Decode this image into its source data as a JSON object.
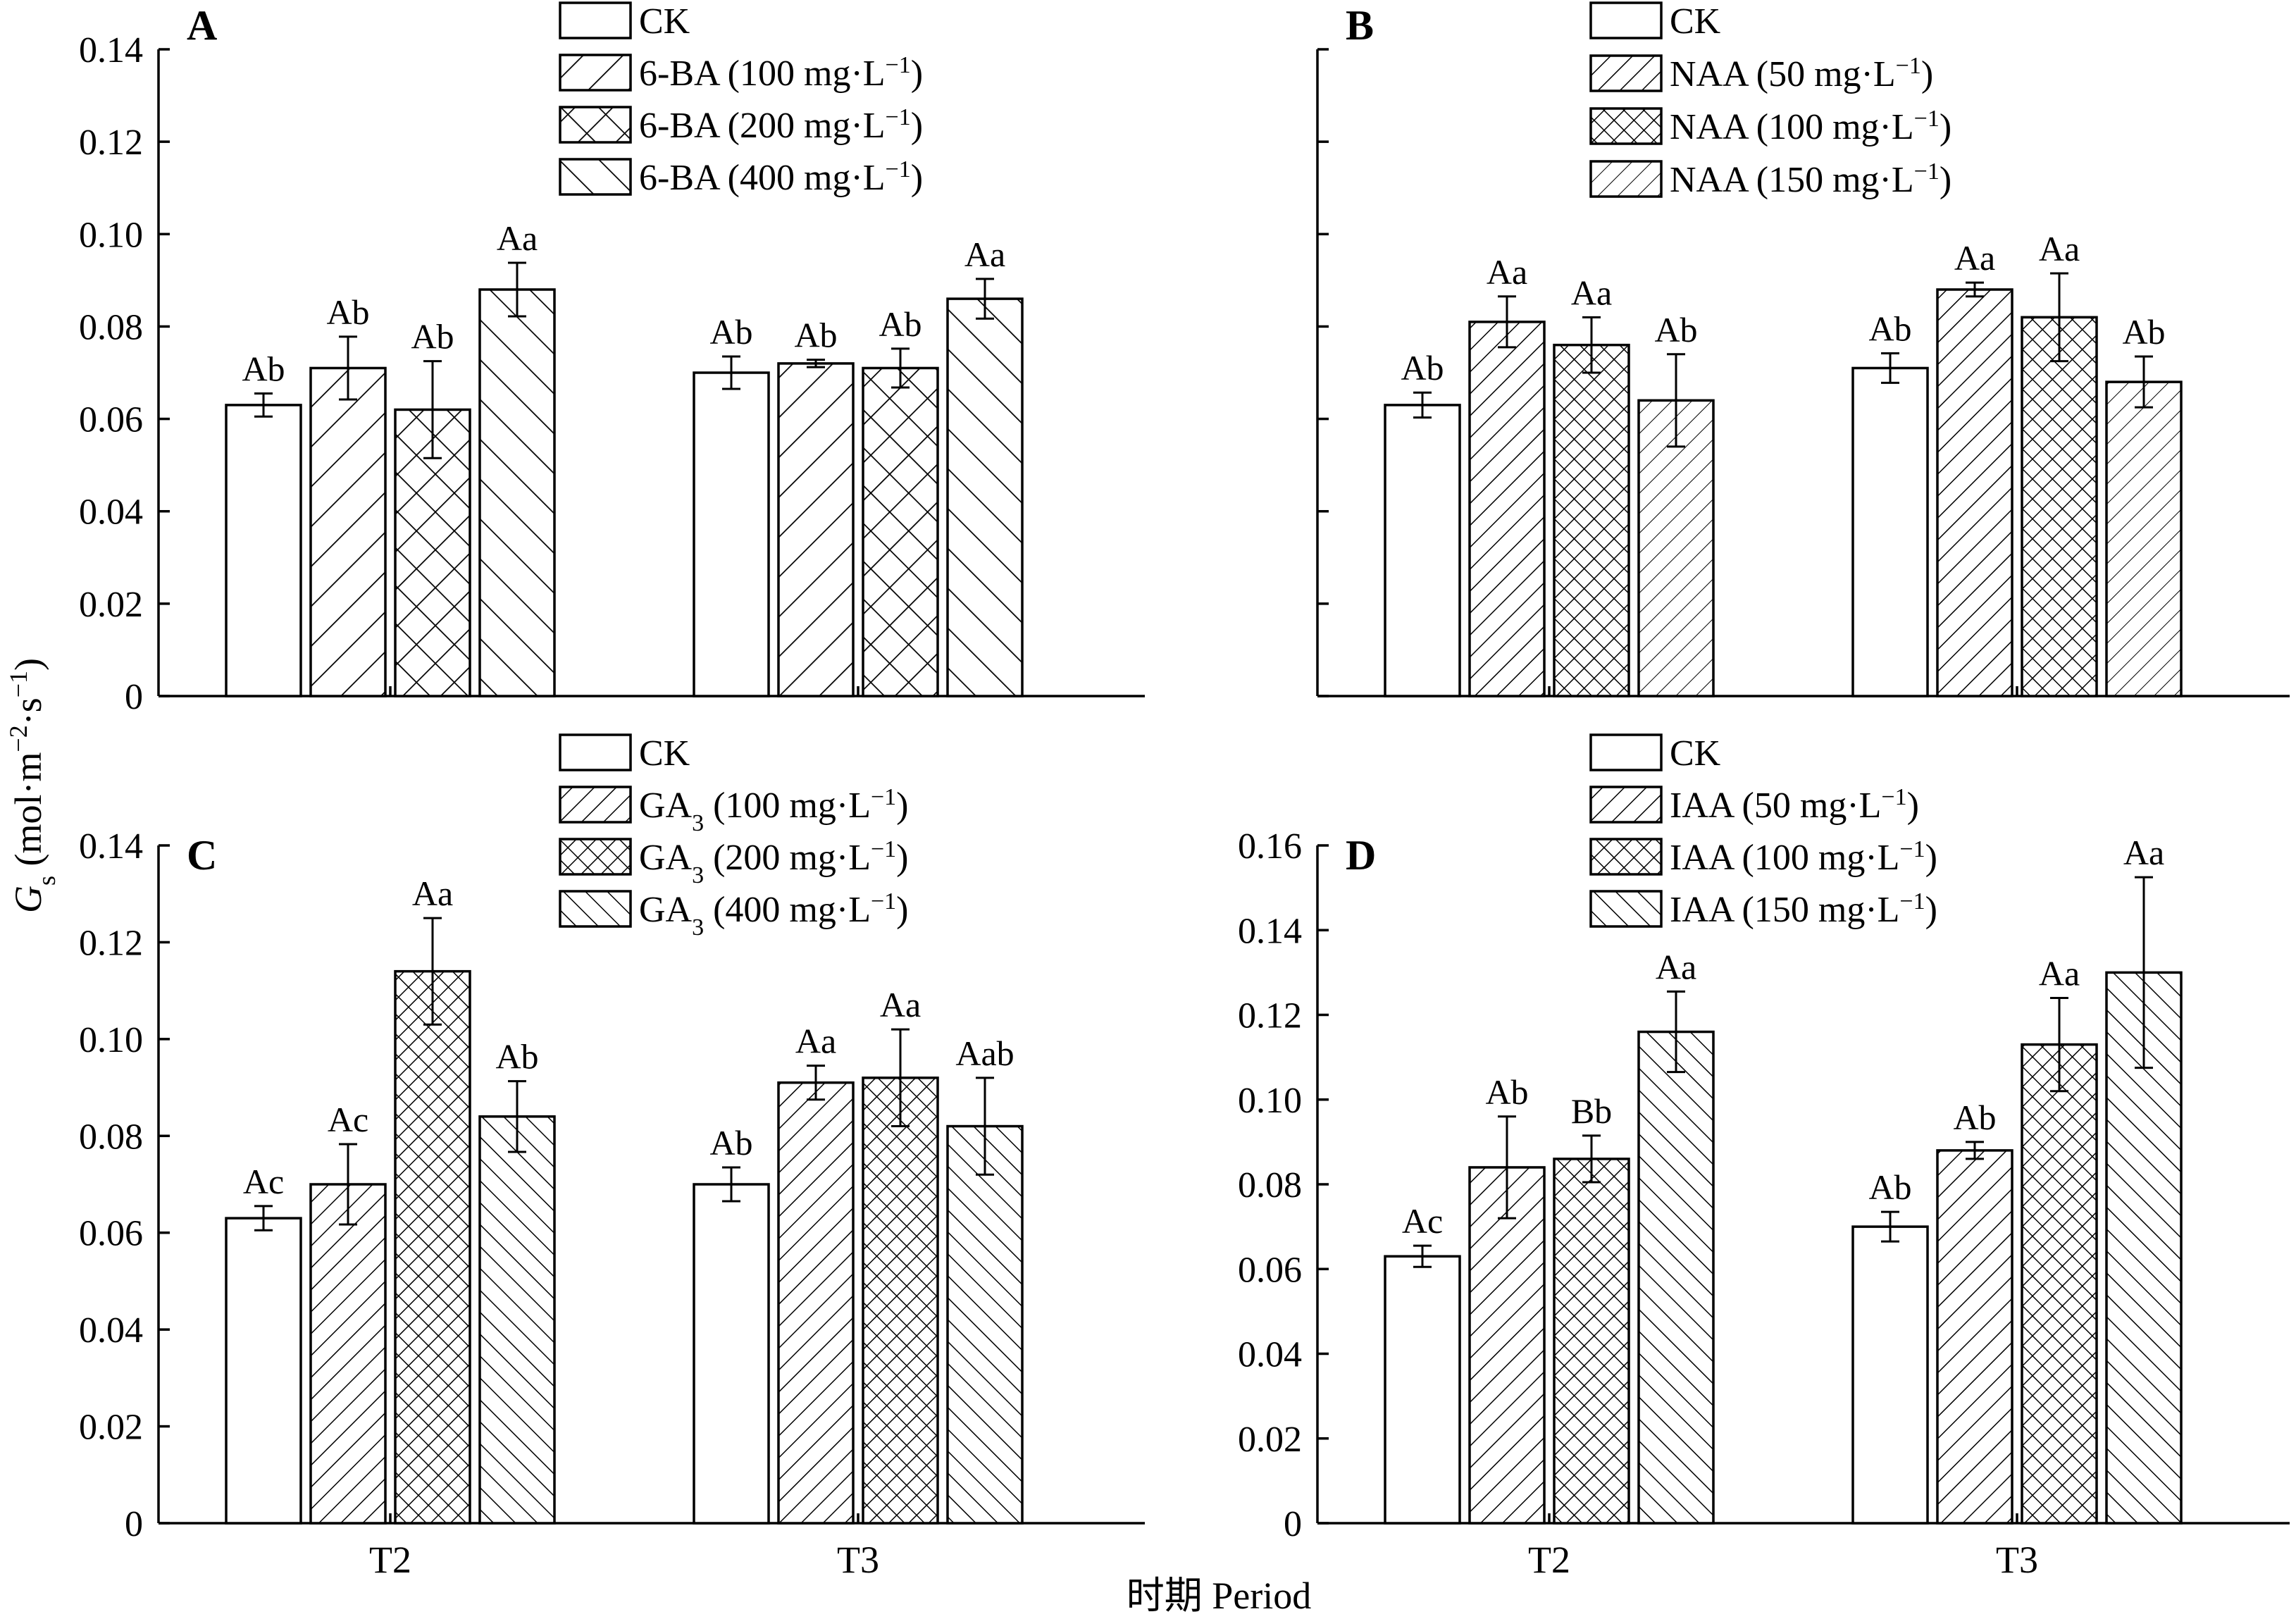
{
  "y_axis_label": "Gs (mol·m⁻²·s⁻¹)",
  "y_axis_parts": {
    "main": "G",
    "sub": "s",
    "unit": " (mol·m",
    "sup1": "−2",
    "mid": "·s",
    "sup2": "−1",
    "close": ")"
  },
  "x_axis_label": "时期 Period",
  "chart_data": [
    {
      "panel": "A",
      "type": "bar",
      "categories": [
        "T2",
        "T3"
      ],
      "show_category_labels": false,
      "show_tick_labels": true,
      "ylim": [
        0,
        0.14
      ],
      "yticks": [
        "0",
        "0.02",
        "0.04",
        "0.06",
        "0.08",
        "0.10",
        "0.12",
        "0.14"
      ],
      "series": [
        {
          "name": "CK",
          "pattern": "none",
          "values": [
            0.063,
            0.07
          ],
          "errors": [
            0.0025,
            0.0035
          ],
          "letters": [
            "Ab",
            "Ab"
          ]
        },
        {
          "name": "6-BA (100 mg·L⁻¹)",
          "base": "6-BA (100 mg·L",
          "sup": "−1",
          "close": ")",
          "pattern": "fwd-wide",
          "values": [
            0.071,
            0.072
          ],
          "errors": [
            0.0068,
            0.0008
          ],
          "letters": [
            "Ab",
            "Ab"
          ]
        },
        {
          "name": "6-BA (200 mg·L⁻¹)",
          "base": "6-BA (200 mg·L",
          "sup": "−1",
          "close": ")",
          "pattern": "cross",
          "values": [
            0.062,
            0.071
          ],
          "errors": [
            0.0105,
            0.0042
          ],
          "letters": [
            "Ab",
            "Ab"
          ]
        },
        {
          "name": "6-BA (400 mg·L⁻¹)",
          "base": "6-BA (400 mg·L",
          "sup": "−1",
          "close": ")",
          "pattern": "back-wide",
          "values": [
            0.088,
            0.086
          ],
          "errors": [
            0.0058,
            0.0043
          ],
          "letters": [
            "Aa",
            "Aa"
          ]
        }
      ]
    },
    {
      "panel": "B",
      "type": "bar",
      "categories": [
        "T2",
        "T3"
      ],
      "show_category_labels": false,
      "show_tick_labels": false,
      "ylim": [
        0,
        0.14
      ],
      "yticks": [],
      "series": [
        {
          "name": "CK",
          "pattern": "none",
          "values": [
            0.063,
            0.071
          ],
          "errors": [
            0.0027,
            0.0032
          ],
          "letters": [
            "Ab",
            "Ab"
          ]
        },
        {
          "name": "NAA (50 mg·L⁻¹)",
          "base": "NAA (50 mg·L",
          "sup": "−1",
          "close": ")",
          "pattern": "fwd-dense",
          "values": [
            0.081,
            0.088
          ],
          "errors": [
            0.0055,
            0.0015
          ],
          "letters": [
            "Aa",
            "Aa"
          ]
        },
        {
          "name": "NAA (100 mg·L⁻¹)",
          "base": "NAA (100 mg·L",
          "sup": "−1",
          "close": ")",
          "pattern": "cross-dense",
          "values": [
            0.076,
            0.082
          ],
          "errors": [
            0.006,
            0.0095
          ],
          "letters": [
            "Aa",
            "Aa"
          ]
        },
        {
          "name": "NAA (150 mg·L⁻¹)",
          "base": "NAA (150 mg·L",
          "sup": "−1",
          "close": ")",
          "pattern": "fwd-light",
          "values": [
            0.064,
            0.068
          ],
          "errors": [
            0.01,
            0.0055
          ],
          "letters": [
            "Ab",
            "Ab"
          ]
        }
      ]
    },
    {
      "panel": "C",
      "type": "bar",
      "categories": [
        "T2",
        "T3"
      ],
      "show_category_labels": true,
      "show_tick_labels": true,
      "ylim": [
        0,
        0.14
      ],
      "yticks": [
        "0",
        "0.02",
        "0.04",
        "0.06",
        "0.08",
        "0.10",
        "0.12",
        "0.14"
      ],
      "series": [
        {
          "name": "CK",
          "pattern": "none",
          "values": [
            0.063,
            0.07
          ],
          "errors": [
            0.0025,
            0.0035
          ],
          "letters": [
            "Ac",
            "Ab"
          ]
        },
        {
          "name": "GA₃ (100 mg·L⁻¹)",
          "base": "GA",
          "sub": "3",
          "rest": " (100 mg·L",
          "sup": "−1",
          "close": ")",
          "pattern": "fwd-dense",
          "values": [
            0.07,
            0.091
          ],
          "errors": [
            0.0083,
            0.0035
          ],
          "letters": [
            "Ac",
            "Aa"
          ]
        },
        {
          "name": "GA₃ (200 mg·L⁻¹)",
          "base": "GA",
          "sub": "3",
          "rest": " (200 mg·L",
          "sup": "−1",
          "close": ")",
          "pattern": "cross-dense",
          "values": [
            0.114,
            0.092
          ],
          "errors": [
            0.011,
            0.01
          ],
          "letters": [
            "Aa",
            "Aa"
          ]
        },
        {
          "name": "GA₃ (400 mg·L⁻¹)",
          "base": "GA",
          "sub": "3",
          "rest": " (400 mg·L",
          "sup": "−1",
          "close": ")",
          "pattern": "back-dense",
          "values": [
            0.084,
            0.082
          ],
          "errors": [
            0.0073,
            0.01
          ],
          "letters": [
            "Ab",
            "Aab"
          ]
        }
      ]
    },
    {
      "panel": "D",
      "type": "bar",
      "categories": [
        "T2",
        "T3"
      ],
      "show_category_labels": true,
      "show_tick_labels": true,
      "ylim": [
        0,
        0.16
      ],
      "yticks": [
        "0",
        "0.02",
        "0.04",
        "0.06",
        "0.08",
        "0.10",
        "0.12",
        "0.14",
        "0.16"
      ],
      "series": [
        {
          "name": "CK",
          "pattern": "none",
          "values": [
            0.063,
            0.07
          ],
          "errors": [
            0.0025,
            0.0035
          ],
          "letters": [
            "Ac",
            "Ab"
          ]
        },
        {
          "name": "IAA (50 mg·L⁻¹)",
          "base": "IAA (50 mg·L",
          "sup": "−1",
          "close": ")",
          "pattern": "fwd-dense",
          "values": [
            0.084,
            0.088
          ],
          "errors": [
            0.012,
            0.002
          ],
          "letters": [
            "Ab",
            "Ab"
          ]
        },
        {
          "name": "IAA (100 mg·L⁻¹)",
          "base": "IAA (100 mg·L",
          "sup": "−1",
          "close": ")",
          "pattern": "cross-dense",
          "values": [
            0.086,
            0.113
          ],
          "errors": [
            0.0055,
            0.011
          ],
          "letters": [
            "Bb",
            "Aa"
          ]
        },
        {
          "name": "IAA (150 mg·L⁻¹)",
          "base": "IAA (150 mg·L",
          "sup": "−1",
          "close": ")",
          "pattern": "back-dense",
          "values": [
            0.116,
            0.13
          ],
          "errors": [
            0.0095,
            0.0225
          ],
          "letters": [
            "Aa",
            "Aa"
          ]
        }
      ]
    }
  ]
}
